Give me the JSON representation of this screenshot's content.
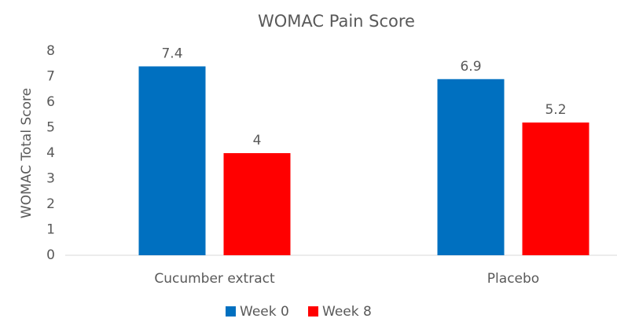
{
  "chart_data": {
    "type": "bar",
    "title": "WOMAC Pain Score",
    "y_label": "WOMAC Total Score",
    "categories": [
      "Cucumber extract",
      "Placebo"
    ],
    "series": [
      {
        "name": "Week 0",
        "color": "#0070c0",
        "values": [
          7.4,
          6.9
        ]
      },
      {
        "name": "Week 8",
        "color": "#ff0000",
        "values": [
          4,
          5.2
        ]
      }
    ],
    "ylim": [
      0,
      8
    ],
    "yticks": [
      0,
      1,
      2,
      3,
      4,
      5,
      6,
      7,
      8
    ],
    "grid": false,
    "legend": "bottom"
  }
}
